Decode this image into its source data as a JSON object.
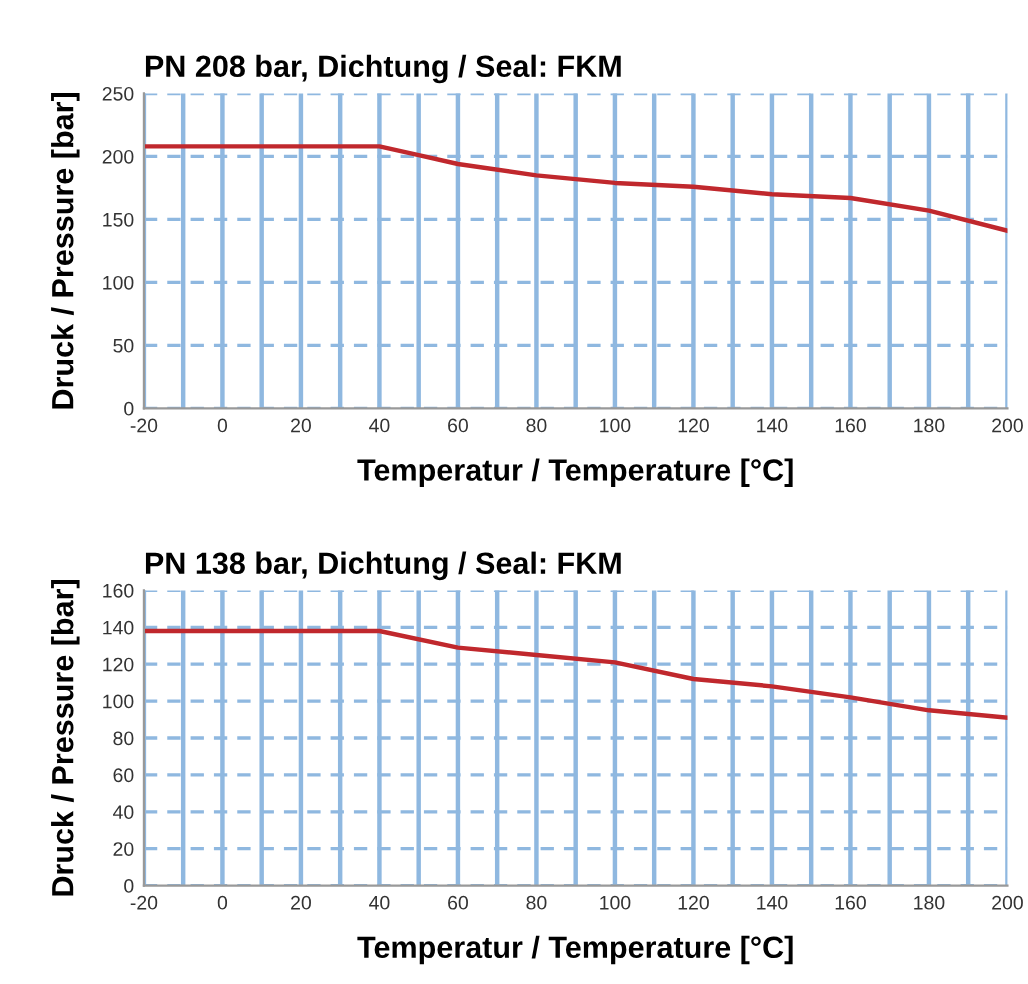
{
  "chart_data": [
    {
      "type": "line",
      "title": "PN 208 bar, Dichtung / Seal: FKM",
      "xlabel": "Temperatur / Temperature [°C]",
      "ylabel": "Druck / Pressure [bar]",
      "x": [
        -20,
        0,
        20,
        40,
        50,
        60,
        80,
        100,
        120,
        140,
        160,
        180,
        200
      ],
      "series": [
        {
          "color": "#c0282d",
          "values": [
            208,
            208,
            208,
            208,
            201,
            194,
            185,
            179,
            176,
            170,
            167,
            157,
            141
          ]
        }
      ],
      "xlim": [
        -20,
        200
      ],
      "xticks": [
        -20,
        {
          "value": -10,
          "label": null
        },
        0,
        {
          "value": 10,
          "label": null
        },
        20,
        {
          "value": 30,
          "label": null
        },
        40,
        {
          "value": 50,
          "label": null
        },
        60,
        {
          "value": 70,
          "label": null
        },
        80,
        {
          "value": 90,
          "label": null
        },
        100,
        {
          "value": 110,
          "label": null
        },
        120,
        {
          "value": 130,
          "label": null
        },
        140,
        {
          "value": 150,
          "label": null
        },
        160,
        {
          "value": 170,
          "label": null
        },
        180,
        {
          "value": 190,
          "label": null
        },
        200
      ],
      "ylim": [
        0,
        250
      ],
      "yticks": [
        0,
        50,
        100,
        150,
        200,
        250
      ],
      "grid": true,
      "legend": false
    },
    {
      "type": "line",
      "title": "PN 138 bar, Dichtung / Seal: FKM",
      "xlabel": "Temperatur / Temperature [°C]",
      "ylabel": "Druck / Pressure [bar]",
      "x": [
        -20,
        0,
        20,
        40,
        60,
        80,
        100,
        120,
        140,
        160,
        180,
        200
      ],
      "series": [
        {
          "color": "#c0282d",
          "values": [
            138,
            138,
            138,
            138,
            129,
            125,
            121,
            112,
            108,
            102,
            95,
            91
          ]
        }
      ],
      "xlim": [
        -20,
        200
      ],
      "xticks": [
        -20,
        {
          "value": -10,
          "label": null
        },
        0,
        {
          "value": 10,
          "label": null
        },
        20,
        {
          "value": 30,
          "label": null
        },
        40,
        {
          "value": 50,
          "label": null
        },
        60,
        {
          "value": 70,
          "label": null
        },
        80,
        {
          "value": 90,
          "label": null
        },
        100,
        {
          "value": 110,
          "label": null
        },
        120,
        {
          "value": 130,
          "label": null
        },
        140,
        {
          "value": 150,
          "label": null
        },
        160,
        {
          "value": 170,
          "label": null
        },
        180,
        {
          "value": 190,
          "label": null
        },
        200
      ],
      "ylim": [
        0,
        160
      ],
      "yticks": [
        0,
        20,
        40,
        60,
        80,
        100,
        120,
        140,
        160
      ],
      "grid": true,
      "legend": false
    }
  ]
}
